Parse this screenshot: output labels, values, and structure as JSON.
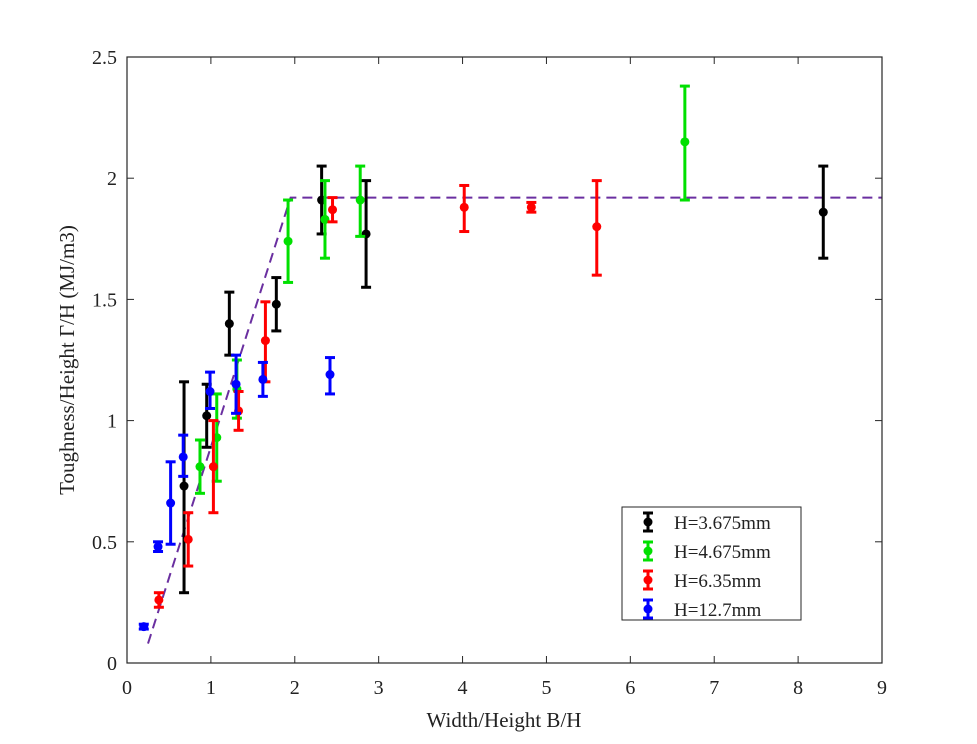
{
  "chart_data": {
    "type": "scatter",
    "xlabel": "Width/Height B/H",
    "ylabel": "Toughness/Height   Γ/H (MJ/m3)",
    "xlim": [
      0,
      9
    ],
    "ylim": [
      0,
      2.5
    ],
    "x_ticks": [
      "0",
      "1",
      "2",
      "3",
      "4",
      "5",
      "6",
      "7",
      "8",
      "9"
    ],
    "y_ticks": [
      "0",
      "0.5",
      "1",
      "1.5",
      "2",
      "2.5"
    ],
    "grid": false,
    "legend_position": "bottom-right",
    "series": [
      {
        "name": "H=3.675mm",
        "color": "#000000",
        "points": [
          {
            "x": 0.68,
            "y": 0.73,
            "lo": 0.29,
            "hi": 1.16
          },
          {
            "x": 0.95,
            "y": 1.02,
            "lo": 0.89,
            "hi": 1.15
          },
          {
            "x": 1.22,
            "y": 1.4,
            "lo": 1.27,
            "hi": 1.53
          },
          {
            "x": 1.78,
            "y": 1.48,
            "lo": 1.37,
            "hi": 1.59
          },
          {
            "x": 2.32,
            "y": 1.91,
            "lo": 1.77,
            "hi": 2.05
          },
          {
            "x": 2.85,
            "y": 1.77,
            "lo": 1.55,
            "hi": 1.99
          },
          {
            "x": 8.3,
            "y": 1.86,
            "lo": 1.67,
            "hi": 2.05
          }
        ]
      },
      {
        "name": "H=4.675mm",
        "color": "#00e000",
        "points": [
          {
            "x": 0.87,
            "y": 0.81,
            "lo": 0.7,
            "hi": 0.92
          },
          {
            "x": 1.07,
            "y": 0.93,
            "lo": 0.75,
            "hi": 1.11
          },
          {
            "x": 1.31,
            "y": 1.13,
            "lo": 1.01,
            "hi": 1.25
          },
          {
            "x": 1.92,
            "y": 1.74,
            "lo": 1.57,
            "hi": 1.91
          },
          {
            "x": 2.36,
            "y": 1.83,
            "lo": 1.67,
            "hi": 1.99
          },
          {
            "x": 2.78,
            "y": 1.91,
            "lo": 1.76,
            "hi": 2.05
          },
          {
            "x": 6.65,
            "y": 2.15,
            "lo": 1.91,
            "hi": 2.38
          }
        ]
      },
      {
        "name": "H=6.35mm",
        "color": "#ff0000",
        "points": [
          {
            "x": 0.38,
            "y": 0.26,
            "lo": 0.23,
            "hi": 0.29
          },
          {
            "x": 0.73,
            "y": 0.51,
            "lo": 0.4,
            "hi": 0.62
          },
          {
            "x": 1.03,
            "y": 0.81,
            "lo": 0.62,
            "hi": 1.0
          },
          {
            "x": 1.33,
            "y": 1.04,
            "lo": 0.96,
            "hi": 1.12
          },
          {
            "x": 1.65,
            "y": 1.33,
            "lo": 1.16,
            "hi": 1.49
          },
          {
            "x": 2.45,
            "y": 1.87,
            "lo": 1.82,
            "hi": 1.92
          },
          {
            "x": 4.02,
            "y": 1.88,
            "lo": 1.78,
            "hi": 1.97
          },
          {
            "x": 4.82,
            "y": 1.88,
            "lo": 1.86,
            "hi": 1.9
          },
          {
            "x": 5.6,
            "y": 1.8,
            "lo": 1.6,
            "hi": 1.99
          }
        ]
      },
      {
        "name": "H=12.7mm",
        "color": "#0000ff",
        "points": [
          {
            "x": 0.2,
            "y": 0.15,
            "lo": 0.14,
            "hi": 0.16
          },
          {
            "x": 0.37,
            "y": 0.48,
            "lo": 0.46,
            "hi": 0.5
          },
          {
            "x": 0.52,
            "y": 0.66,
            "lo": 0.49,
            "hi": 0.83
          },
          {
            "x": 0.67,
            "y": 0.85,
            "lo": 0.77,
            "hi": 0.94
          },
          {
            "x": 0.99,
            "y": 1.12,
            "lo": 1.05,
            "hi": 1.2
          },
          {
            "x": 1.3,
            "y": 1.15,
            "lo": 1.03,
            "hi": 1.27
          },
          {
            "x": 1.62,
            "y": 1.17,
            "lo": 1.1,
            "hi": 1.24
          },
          {
            "x": 2.42,
            "y": 1.19,
            "lo": 1.11,
            "hi": 1.26
          }
        ]
      }
    ],
    "trend_line": {
      "color": "#6a2fa0",
      "style": "dashed",
      "points": [
        {
          "x": 0.25,
          "y": 0.08
        },
        {
          "x": 1.95,
          "y": 1.92
        },
        {
          "x": 9.0,
          "y": 1.92
        }
      ]
    }
  }
}
